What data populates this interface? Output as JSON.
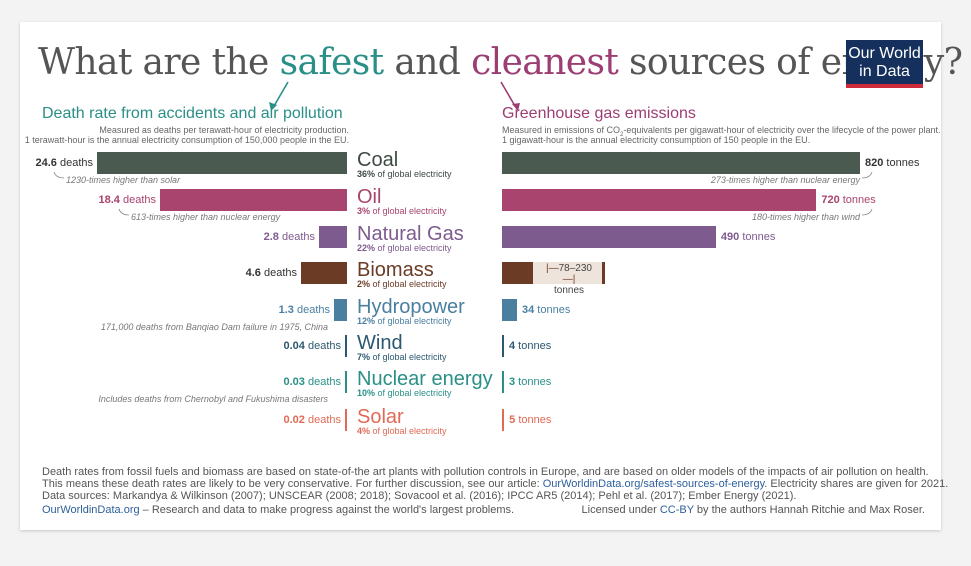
{
  "title": {
    "part1": "What are the ",
    "safest": "safest",
    "part2": " and ",
    "cleanest": "cleanest",
    "part3": " sources of energy?"
  },
  "logo": {
    "line1": "Our World",
    "line2": "in Data"
  },
  "left_section": {
    "title": "Death rate from accidents and air pollution",
    "sub1": "Measured as deaths per terawatt-hour of electricity production.",
    "sub2": "1 terawatt-hour is the annual electricity consumption of 150,000 people in the EU."
  },
  "right_section": {
    "title": "Greenhouse gas emissions",
    "sub1_a": "Measured in emissions of CO",
    "sub1_sub": "2",
    "sub1_b": "-equivalents per gigawatt-hour of electricity over the lifecycle of the power plant.",
    "sub2": "1 gigawatt-hour is the annual electricity consumption of 150 people in the EU."
  },
  "chart_data": {
    "type": "bar",
    "categories": [
      "Coal",
      "Oil",
      "Natural Gas",
      "Biomass",
      "Hydropower",
      "Wind",
      "Nuclear energy",
      "Solar"
    ],
    "shares": [
      "36%",
      "3%",
      "22%",
      "2%",
      "12%",
      "7%",
      "10%",
      "4%"
    ],
    "share_suffix": " of global electricity",
    "colors": [
      "#4a5a50",
      "#a8446d",
      "#7e5b8e",
      "#6b3b26",
      "#4a7fa0",
      "#2b5870",
      "#2a9087",
      "#e06a55"
    ],
    "label_colors": [
      "#3d4a42",
      "#a8446d",
      "#7e5b8e",
      "#6b3b26",
      "#4a7fa0",
      "#2b5870",
      "#2a9087",
      "#e06a55"
    ],
    "series": [
      {
        "name": "Death rate from accidents and air pollution",
        "values": [
          24.6,
          18.4,
          2.8,
          4.6,
          1.3,
          0.04,
          0.03,
          0.02
        ],
        "value_labels": [
          "24.6",
          "18.4",
          "2.8",
          "4.6",
          "1.3",
          "0.04",
          "0.03",
          "0.02"
        ],
        "unit": "deaths"
      },
      {
        "name": "Greenhouse gas emissions",
        "values": [
          820,
          720,
          490,
          154,
          34,
          4,
          3,
          5
        ],
        "value_labels": [
          "820",
          "720",
          "490",
          "",
          "34",
          "4",
          "3",
          "5"
        ],
        "unit": "tonnes",
        "biomass_range": {
          "low": 78,
          "high": 230,
          "label": "78–230",
          "unit": "tonnes"
        }
      }
    ],
    "left_notes": [
      "1230-times higher than solar",
      "613-times higher than nuclear energy",
      "",
      "",
      "171,000 deaths from Banqiao Dam failure in 1975, China",
      "",
      "Includes deaths from Chernobyl and Fukushima disasters",
      ""
    ],
    "right_notes": [
      "273-times higher than nuclear energy",
      "180-times higher than wind",
      "",
      "",
      "",
      "",
      "",
      ""
    ]
  },
  "footer": {
    "line1": "Death rates from fossil fuels and biomass are based on state-of-the art plants with pollution controls in Europe, and are based on older models of the impacts of air pollution on health.",
    "line2_a": "This means these death rates are likely to be very conservative. For further discussion, see our article: ",
    "line2_link": "OurWorldinData.org/safest-sources-of-energy",
    "line2_b": ". Electricity shares are given for 2021.",
    "line3": "Data sources: Markandya & Wilkinson (2007); UNSCEAR (2008; 2018); Sovacool et al. (2016); IPCC AR5 (2014); Pehl et al. (2017); Ember Energy (2021).",
    "line4_link": "OurWorldinData.org",
    "line4_b": " – Research and data to make progress against the world's largest problems.",
    "license_a": "Licensed under ",
    "license_link": "CC-BY",
    "license_b": " by the authors Hannah Ritchie and Max Roser."
  }
}
